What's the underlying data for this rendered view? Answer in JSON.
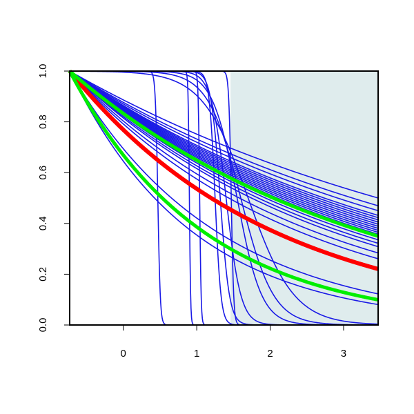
{
  "chart_data": {
    "type": "line",
    "title": "",
    "xlabel": "",
    "ylabel": "",
    "xlim": [
      -0.73,
      3.47
    ],
    "ylim": [
      0,
      1
    ],
    "x_ticks": [
      0,
      1,
      2,
      3
    ],
    "x_tick_labels": [
      "0",
      "1",
      "2",
      "3"
    ],
    "y_ticks": [
      0,
      0.2,
      0.4,
      0.6,
      0.8,
      1
    ],
    "y_tick_labels": [
      "0.0",
      "0.2",
      "0.4",
      "0.6",
      "0.8",
      "1.0"
    ],
    "grid": false,
    "shaded_region": {
      "x": [
        1.46,
        3.47
      ],
      "y": [
        0,
        1
      ]
    },
    "colors": {
      "shade": "#dfeced",
      "blue": "#1a1ae6",
      "red": "#ff0000",
      "green": "#00ee00",
      "axis": "#000000"
    },
    "blue_exponential_rates": [
      0.165,
      0.18,
      0.19,
      0.2,
      0.205,
      0.21,
      0.215,
      0.22,
      0.225,
      0.23,
      0.235,
      0.24,
      0.245,
      0.25,
      0.26,
      0.27,
      0.28,
      0.3,
      0.32,
      0.5,
      0.6
    ],
    "blue_step_curves": [
      {
        "midpoint": 0.47,
        "steepness": 60
      },
      {
        "midpoint": 0.9,
        "steepness": 120
      },
      {
        "midpoint": 1.04,
        "steepness": 100
      },
      {
        "midpoint": 1.25,
        "steepness": 25
      },
      {
        "midpoint": 1.32,
        "steepness": 16
      },
      {
        "midpoint": 1.4,
        "steepness": 10
      },
      {
        "midpoint": 1.47,
        "steepness": 60
      },
      {
        "midpoint": 1.55,
        "steepness": 6
      },
      {
        "midpoint": 1.6,
        "steepness": 4.5
      },
      {
        "midpoint": 1.7,
        "steepness": 3.2
      }
    ],
    "red_curve": {
      "type": "exponential",
      "rate": 0.36
    },
    "green_curves": [
      {
        "type": "exponential",
        "rate": 0.25
      },
      {
        "type": "exponential",
        "rate": 0.55
      }
    ]
  }
}
